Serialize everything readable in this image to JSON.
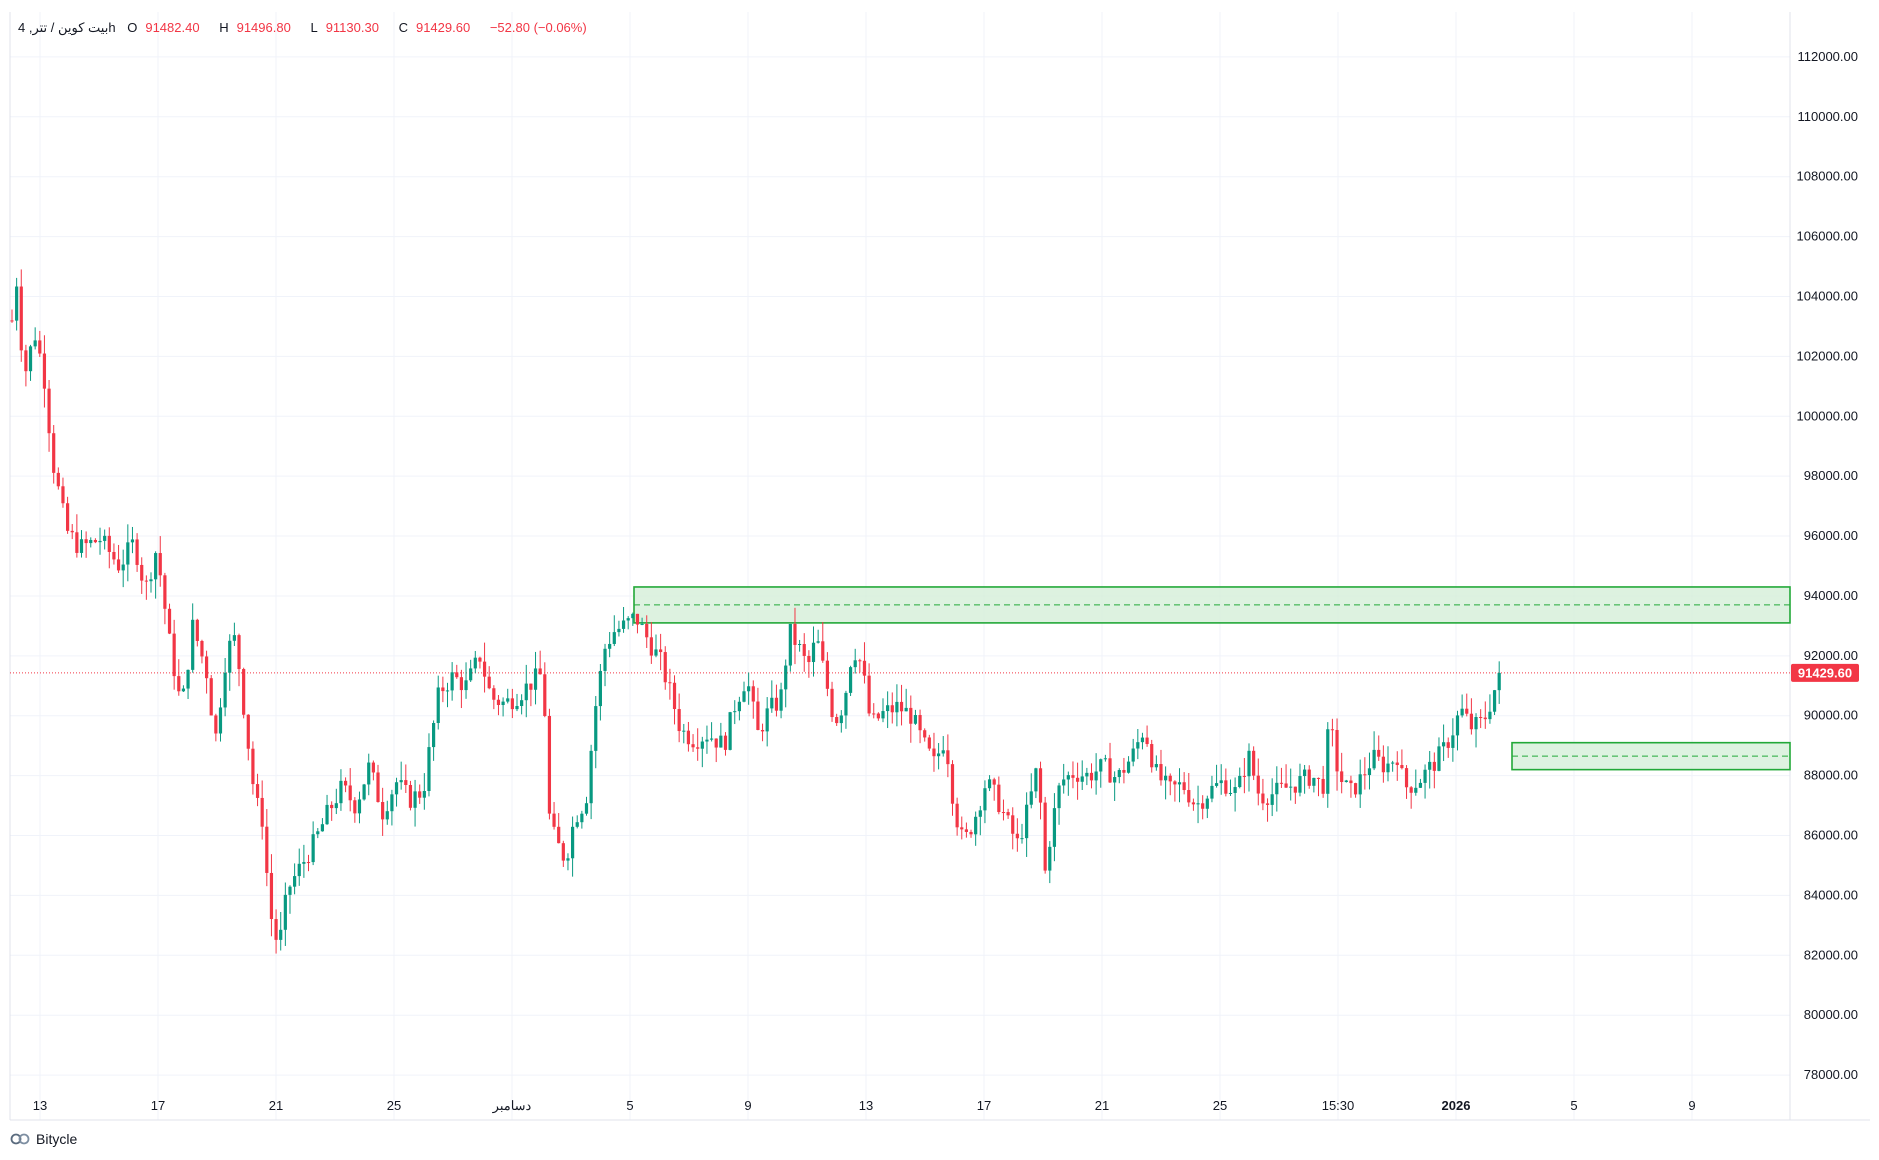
{
  "legend": {
    "symbol": "بیت کوین / تتر, 4h",
    "open_label": "O",
    "open": "91482.40",
    "high_label": "H",
    "high": "91496.80",
    "low_label": "L",
    "low": "91130.30",
    "close_label": "C",
    "close": "91429.60",
    "change": "−52.80 (−0.06%)"
  },
  "brand": {
    "name": "Bitycle",
    "logo_icon": "bitycle-logo-icon"
  },
  "colors": {
    "up": "#089981",
    "down": "#f23645",
    "zone_border": "#22a838",
    "zone_fill": "#d4efd8",
    "grid": "#f0f3fa",
    "price_line": "#f23645"
  },
  "chart_data": {
    "type": "candlestick",
    "title": "",
    "xlabel": "",
    "ylabel": "",
    "ylim": [
      76500,
      113500
    ],
    "y_ticks": [
      78000,
      80000,
      82000,
      84000,
      86000,
      88000,
      90000,
      92000,
      94000,
      96000,
      98000,
      100000,
      102000,
      104000,
      106000,
      108000,
      110000,
      112000
    ],
    "x_ticks": [
      {
        "label": "13",
        "bold": false
      },
      {
        "label": "17",
        "bold": false
      },
      {
        "label": "21",
        "bold": false
      },
      {
        "label": "25",
        "bold": false
      },
      {
        "label": "دسامبر",
        "bold": false
      },
      {
        "label": "5",
        "bold": false
      },
      {
        "label": "9",
        "bold": false
      },
      {
        "label": "13",
        "bold": false
      },
      {
        "label": "17",
        "bold": false
      },
      {
        "label": "21",
        "bold": false
      },
      {
        "label": "25",
        "bold": false
      },
      {
        "label": "15:30",
        "bold": false
      },
      {
        "label": "2026",
        "bold": true
      },
      {
        "label": "5",
        "bold": false
      },
      {
        "label": "9",
        "bold": false
      }
    ],
    "last_price": "91429.60",
    "path": [
      {
        "t": 0,
        "p": 103200
      },
      {
        "t": 5,
        "p": 104800
      },
      {
        "t": 10,
        "p": 101200
      },
      {
        "t": 20,
        "p": 102800
      },
      {
        "t": 28,
        "p": 101500
      },
      {
        "t": 36,
        "p": 98500
      },
      {
        "t": 48,
        "p": 96200
      },
      {
        "t": 60,
        "p": 95600
      },
      {
        "t": 78,
        "p": 95900
      },
      {
        "t": 95,
        "p": 95000
      },
      {
        "t": 108,
        "p": 95800
      },
      {
        "t": 118,
        "p": 94200
      },
      {
        "t": 128,
        "p": 95600
      },
      {
        "t": 140,
        "p": 92300
      },
      {
        "t": 150,
        "p": 90200
      },
      {
        "t": 160,
        "p": 93000
      },
      {
        "t": 172,
        "p": 91500
      },
      {
        "t": 180,
        "p": 89200
      },
      {
        "t": 190,
        "p": 92200
      },
      {
        "t": 198,
        "p": 92600
      },
      {
        "t": 206,
        "p": 90000
      },
      {
        "t": 215,
        "p": 87200
      },
      {
        "t": 222,
        "p": 86500
      },
      {
        "t": 228,
        "p": 83500
      },
      {
        "t": 236,
        "p": 82200
      },
      {
        "t": 244,
        "p": 84200
      },
      {
        "t": 256,
        "p": 85000
      },
      {
        "t": 268,
        "p": 85800
      },
      {
        "t": 280,
        "p": 86800
      },
      {
        "t": 292,
        "p": 87600
      },
      {
        "t": 304,
        "p": 87000
      },
      {
        "t": 316,
        "p": 88300
      },
      {
        "t": 328,
        "p": 86800
      },
      {
        "t": 340,
        "p": 87800
      },
      {
        "t": 352,
        "p": 87200
      },
      {
        "t": 364,
        "p": 87500
      },
      {
        "t": 370,
        "p": 89000
      },
      {
        "t": 378,
        "p": 90800
      },
      {
        "t": 390,
        "p": 91300
      },
      {
        "t": 402,
        "p": 91000
      },
      {
        "t": 414,
        "p": 92000
      },
      {
        "t": 424,
        "p": 90600
      },
      {
        "t": 436,
        "p": 90400
      },
      {
        "t": 448,
        "p": 90700
      },
      {
        "t": 462,
        "p": 91200
      },
      {
        "t": 470,
        "p": 91400
      },
      {
        "t": 476,
        "p": 86300
      },
      {
        "t": 484,
        "p": 85600
      },
      {
        "t": 490,
        "p": 85200
      },
      {
        "t": 498,
        "p": 86600
      },
      {
        "t": 508,
        "p": 87200
      },
      {
        "t": 516,
        "p": 90200
      },
      {
        "t": 524,
        "p": 92200
      },
      {
        "t": 532,
        "p": 92800
      },
      {
        "t": 542,
        "p": 93000
      },
      {
        "t": 552,
        "p": 93300
      },
      {
        "t": 562,
        "p": 92600
      },
      {
        "t": 574,
        "p": 91800
      },
      {
        "t": 584,
        "p": 90600
      },
      {
        "t": 592,
        "p": 89500
      },
      {
        "t": 604,
        "p": 89200
      },
      {
        "t": 616,
        "p": 89400
      },
      {
        "t": 630,
        "p": 89000
      },
      {
        "t": 640,
        "p": 90400
      },
      {
        "t": 650,
        "p": 91300
      },
      {
        "t": 660,
        "p": 89400
      },
      {
        "t": 670,
        "p": 90200
      },
      {
        "t": 680,
        "p": 90500
      },
      {
        "t": 688,
        "p": 92800
      },
      {
        "t": 696,
        "p": 92300
      },
      {
        "t": 704,
        "p": 91600
      },
      {
        "t": 712,
        "p": 92600
      },
      {
        "t": 720,
        "p": 91200
      },
      {
        "t": 728,
        "p": 89800
      },
      {
        "t": 736,
        "p": 90400
      },
      {
        "t": 744,
        "p": 92300
      },
      {
        "t": 752,
        "p": 91700
      },
      {
        "t": 760,
        "p": 89700
      },
      {
        "t": 772,
        "p": 90100
      },
      {
        "t": 784,
        "p": 90300
      },
      {
        "t": 796,
        "p": 90000
      },
      {
        "t": 806,
        "p": 89100
      },
      {
        "t": 816,
        "p": 88400
      },
      {
        "t": 826,
        "p": 89300
      },
      {
        "t": 834,
        "p": 86900
      },
      {
        "t": 842,
        "p": 85700
      },
      {
        "t": 852,
        "p": 86600
      },
      {
        "t": 862,
        "p": 87800
      },
      {
        "t": 872,
        "p": 87200
      },
      {
        "t": 880,
        "p": 86500
      },
      {
        "t": 890,
        "p": 85700
      },
      {
        "t": 900,
        "p": 87000
      },
      {
        "t": 908,
        "p": 88400
      },
      {
        "t": 914,
        "p": 84700
      },
      {
        "t": 920,
        "p": 86300
      },
      {
        "t": 928,
        "p": 87800
      },
      {
        "t": 940,
        "p": 88100
      },
      {
        "t": 952,
        "p": 88000
      },
      {
        "t": 966,
        "p": 88300
      },
      {
        "t": 978,
        "p": 87900
      },
      {
        "t": 992,
        "p": 88700
      },
      {
        "t": 1002,
        "p": 89600
      },
      {
        "t": 1012,
        "p": 88100
      },
      {
        "t": 1024,
        "p": 87500
      },
      {
        "t": 1036,
        "p": 87700
      },
      {
        "t": 1048,
        "p": 87000
      },
      {
        "t": 1060,
        "p": 87500
      },
      {
        "t": 1072,
        "p": 87800
      },
      {
        "t": 1084,
        "p": 87400
      },
      {
        "t": 1094,
        "p": 88700
      },
      {
        "t": 1104,
        "p": 87300
      },
      {
        "t": 1116,
        "p": 87400
      },
      {
        "t": 1128,
        "p": 87600
      },
      {
        "t": 1140,
        "p": 87800
      },
      {
        "t": 1150,
        "p": 88000
      },
      {
        "t": 1160,
        "p": 87600
      },
      {
        "t": 1166,
        "p": 89800
      },
      {
        "t": 1174,
        "p": 88000
      },
      {
        "t": 1184,
        "p": 87400
      },
      {
        "t": 1194,
        "p": 87900
      },
      {
        "t": 1204,
        "p": 88600
      },
      {
        "t": 1216,
        "p": 88300
      },
      {
        "t": 1226,
        "p": 88700
      },
      {
        "t": 1232,
        "p": 87600
      },
      {
        "t": 1244,
        "p": 87800
      },
      {
        "t": 1256,
        "p": 88300
      },
      {
        "t": 1266,
        "p": 88800
      },
      {
        "t": 1274,
        "p": 89400
      },
      {
        "t": 1282,
        "p": 90200
      },
      {
        "t": 1292,
        "p": 89600
      },
      {
        "t": 1302,
        "p": 89800
      },
      {
        "t": 1308,
        "p": 90400
      },
      {
        "t": 1314,
        "p": 91100
      },
      {
        "t": 1320,
        "p": 91450
      }
    ],
    "zones": [
      {
        "name": "supply-zone",
        "top": 94300,
        "bottom": 93100,
        "mid": 93700
      },
      {
        "name": "demand-zone",
        "top": 89100,
        "bottom": 88200,
        "mid": 88650
      }
    ]
  }
}
